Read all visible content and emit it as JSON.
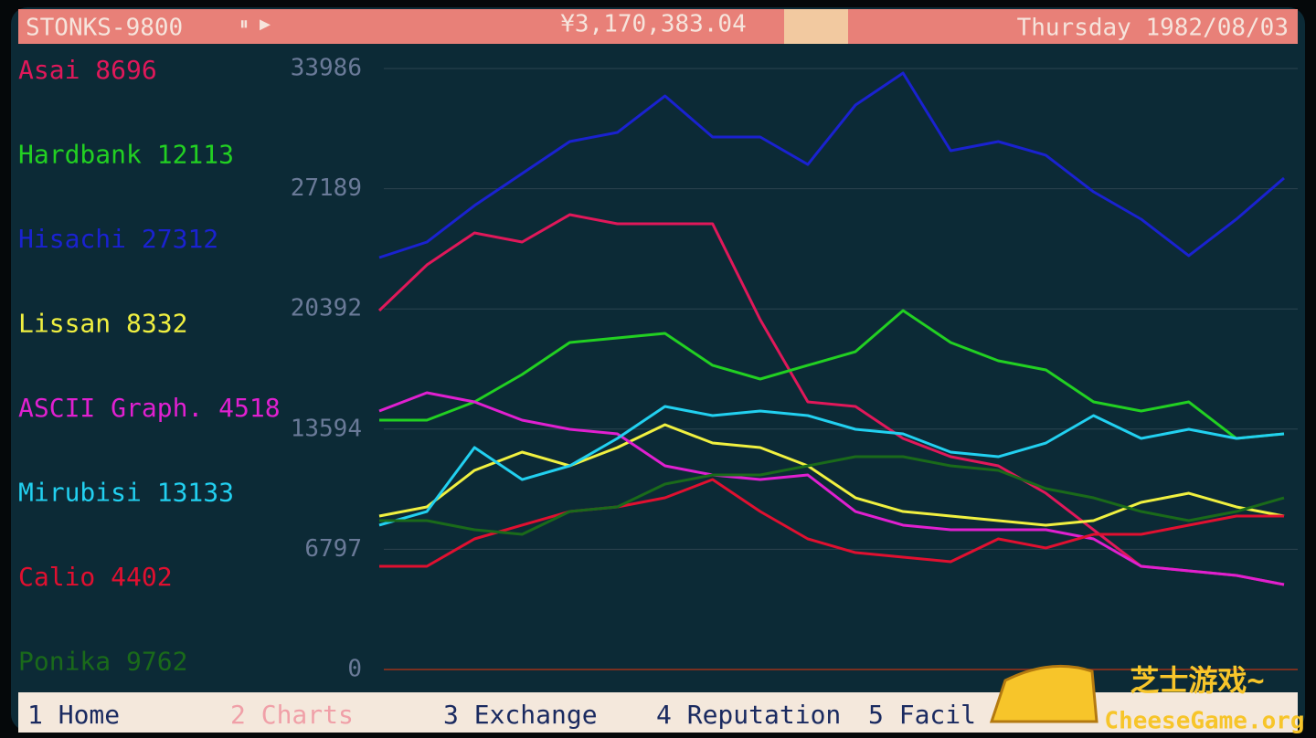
{
  "header": {
    "title": "STONKS-9800",
    "money": "¥3,170,383.04",
    "date": "Thursday 1982/08/03"
  },
  "chart_data": {
    "type": "line",
    "categories": [
      null,
      null,
      null,
      null,
      null,
      null,
      null,
      null,
      null,
      null,
      null,
      null,
      null,
      null,
      null,
      null,
      null,
      null,
      null,
      null
    ],
    "ylim": [
      0,
      33986
    ],
    "yticks": [
      0,
      6797,
      13594,
      20392,
      27189,
      33986
    ],
    "grid": true,
    "series": [
      {
        "name": "Asai",
        "price": 8696,
        "color": "#e0185a",
        "values": [
          20298,
          22880,
          24689,
          24172,
          25721,
          25205,
          25205,
          25205,
          19782,
          15133,
          14875,
          13067,
          12034,
          11518,
          9968,
          7902,
          5836,
          5578,
          5320,
          4803
        ]
      },
      {
        "name": "Hardbank",
        "price": 12113,
        "color": "#22d022",
        "values": [
          14100,
          14100,
          15133,
          16683,
          18491,
          18749,
          19007,
          17200,
          16425,
          17200,
          17974,
          20298,
          18491,
          17458,
          16941,
          15133,
          14617,
          15133,
          13067,
          13326
        ]
      },
      {
        "name": "Hisachi",
        "price": 27312,
        "color": "#1a22d0",
        "values": [
          23294,
          24172,
          26238,
          28046,
          29854,
          30370,
          32436,
          30112,
          30112,
          28562,
          31920,
          33727,
          29337,
          29854,
          29079,
          27013,
          25464,
          23398,
          25464,
          27788
        ]
      },
      {
        "name": "Lissan",
        "price": 8332,
        "color": "#f0f040",
        "values": [
          8677,
          9194,
          11260,
          12293,
          11518,
          12551,
          13842,
          12809,
          12551,
          11518,
          9710,
          8935,
          8677,
          8419,
          8161,
          8419,
          9452,
          9968,
          9194,
          8677
        ]
      },
      {
        "name": "ASCII Graph.",
        "price": 4518,
        "color": "#e020d0",
        "values": [
          14617,
          15650,
          15133,
          14100,
          13584,
          13326,
          11518,
          11001,
          10743,
          11001,
          8935,
          8161,
          7902,
          7902,
          7902,
          7386,
          5836,
          5578,
          5320,
          4803
        ]
      },
      {
        "name": "Mirubisi",
        "price": 13133,
        "color": "#22d0f0",
        "values": [
          8161,
          8935,
          12551,
          10743,
          11518,
          13067,
          14875,
          14359,
          14617,
          14359,
          13584,
          13326,
          12293,
          12034,
          12809,
          14359,
          13067,
          13584,
          13067,
          13326
        ]
      },
      {
        "name": "Calio",
        "price": 4402,
        "color": "#e01030",
        "values": [
          5836,
          5836,
          7386,
          8161,
          8935,
          9194,
          9710,
          10743,
          8935,
          7386,
          6611,
          6353,
          6095,
          7386,
          6870,
          7644,
          7644,
          8161,
          8677,
          8677
        ]
      },
      {
        "name": "Ponika",
        "price": 9762,
        "color": "#1a6a1a",
        "values": [
          8419,
          8419,
          7902,
          7644,
          8935,
          9194,
          10485,
          11001,
          11001,
          11518,
          12034,
          12034,
          11518,
          11260,
          10227,
          9710,
          8935,
          8419,
          8935,
          9710
        ]
      }
    ]
  },
  "nav": {
    "tabs": [
      "1 Home",
      "2 Charts",
      "3 Exchange",
      "4 Reputation",
      "5 Facil"
    ],
    "active": 1
  },
  "watermark": {
    "text": "芝士游戏~",
    "site": "CheeseGame.org"
  }
}
